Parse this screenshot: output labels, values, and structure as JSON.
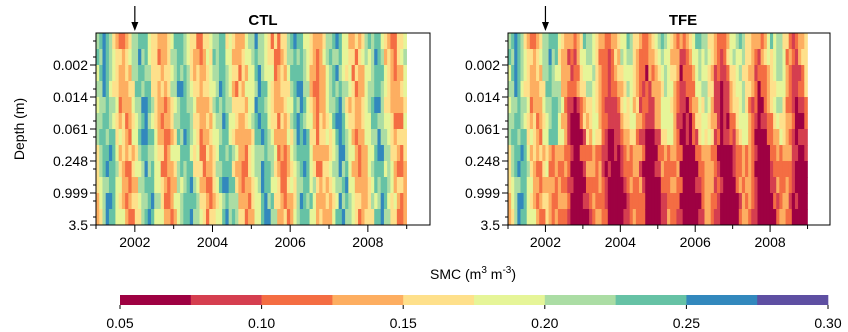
{
  "chart_data": [
    {
      "type": "heatmap",
      "title": "CTL",
      "ylabel": "Depth (m)",
      "xlabel": "",
      "x_ticks": [
        "2002",
        "2004",
        "2006",
        "2008"
      ],
      "x_range": [
        2001.0,
        2009.6
      ],
      "y_ticks": [
        "0.002",
        "0.014",
        "0.061",
        "0.248",
        "0.999",
        "3.5"
      ],
      "marker_arrow_x": 2002.0,
      "n_columns": 96,
      "n_layers": 12,
      "column_step_years": 0.0833,
      "seasonal_cycle": "wet season SMC 0.22-0.27, dry season SMC 0.13-0.18, deep layers lag surface",
      "value_range": [
        0.05,
        0.3
      ]
    },
    {
      "type": "heatmap",
      "title": "TFE",
      "ylabel": "",
      "xlabel": "",
      "x_ticks": [
        "2002",
        "2004",
        "2006",
        "2008"
      ],
      "x_range": [
        2001.0,
        2009.6
      ],
      "y_ticks": [
        "0.002",
        "0.014",
        "0.061",
        "0.248",
        "0.999",
        "3.5"
      ],
      "marker_arrow_x": 2002.0,
      "n_columns": 96,
      "n_layers": 12,
      "column_step_years": 0.0833,
      "seasonal_cycle": "after 2002 throughfall exclusion drying, deep layers persistently 0.10-0.12",
      "value_range": [
        0.05,
        0.3
      ]
    }
  ],
  "colorbar": {
    "title": "SMC (m³ m⁻³)",
    "title_base": "SMC (m",
    "title_sup1": "3",
    "title_mid": " m",
    "title_sup2": "-3",
    "title_end": ")",
    "ticks": [
      "0.05",
      "0.10",
      "0.15",
      "0.20",
      "0.25",
      "0.30"
    ],
    "bin_edges": [
      0.05,
      0.075,
      0.1,
      0.125,
      0.15,
      0.175,
      0.2,
      0.225,
      0.25,
      0.275,
      0.3
    ],
    "colors": [
      "#9e0142",
      "#d53e4f",
      "#f46d43",
      "#fdae61",
      "#fee08b",
      "#e6f598",
      "#abdda4",
      "#66c2a5",
      "#3288bd",
      "#5e4fa2"
    ]
  }
}
